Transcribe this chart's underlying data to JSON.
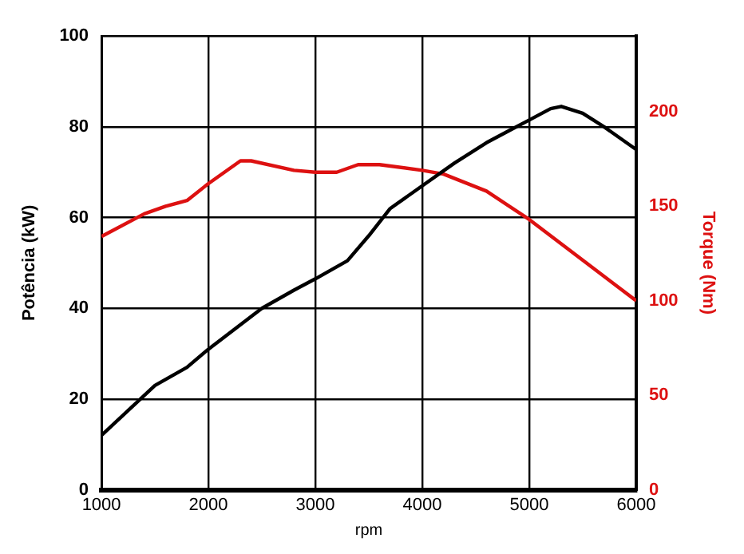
{
  "chart_data": {
    "type": "line",
    "xlabel": "rpm",
    "ylabel": "Potência (kW)",
    "y2label": "Torque (Nm)",
    "xlim": [
      1000,
      6000
    ],
    "xticks": [
      1000,
      2000,
      3000,
      4000,
      5000,
      6000
    ],
    "ylim": [
      0,
      100
    ],
    "yticks": [
      0,
      20,
      40,
      60,
      80,
      100
    ],
    "y2lim": [
      0,
      240
    ],
    "y2ticks": [
      0,
      50,
      100,
      150,
      200
    ],
    "grid": true,
    "legend": false,
    "marker": "none",
    "line_style": "solid",
    "series": [
      {
        "color": "#000000",
        "x": [
          1000,
          1500,
          1800,
          2000,
          2500,
          2800,
          3000,
          3300,
          3500,
          3700,
          4000,
          4300,
          4600,
          4800,
          5000,
          5200,
          5300,
          5500,
          5700,
          6000
        ],
        "values": [
          12,
          23,
          27,
          31,
          40,
          44,
          46.5,
          50.5,
          56,
          62,
          67,
          72,
          76.5,
          79,
          81.5,
          84,
          84.5,
          83,
          80,
          75
        ]
      },
      {
        "color": "#dd1111",
        "axis": "y2",
        "x": [
          1000,
          1400,
          1600,
          1800,
          2000,
          2300,
          2400,
          2800,
          3000,
          3200,
          3400,
          3600,
          4000,
          4200,
          4600,
          5000,
          6000
        ],
        "values": [
          134,
          146,
          150,
          153,
          162,
          174,
          174,
          169,
          168,
          168,
          172,
          172,
          169,
          167,
          158,
          143,
          100
        ]
      }
    ]
  }
}
